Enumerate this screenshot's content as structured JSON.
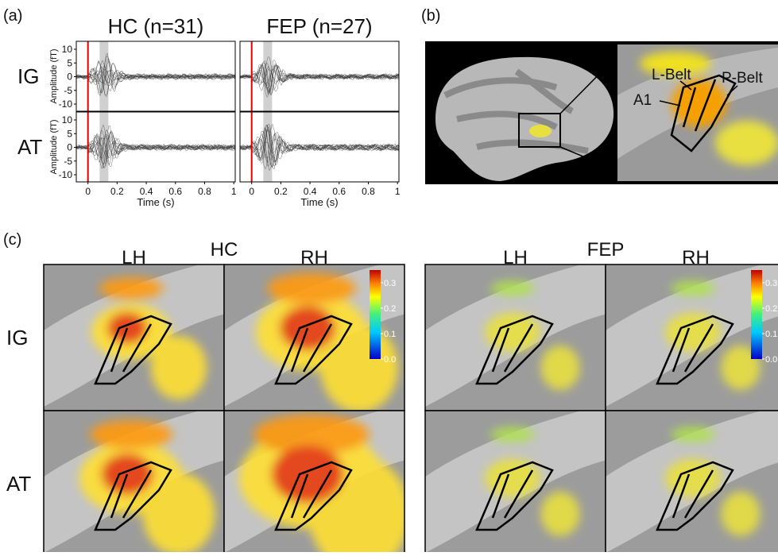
{
  "panel_a": {
    "label": "(a)",
    "columns": [
      "HC (n=31)",
      "FEP (n=27)"
    ],
    "rows": [
      "IG",
      "AT"
    ],
    "y_label": "Amplitude (fT)",
    "x_label": "Time (s)",
    "xlim": [
      -0.08,
      1.01
    ],
    "xticks": [
      0,
      0.2,
      0.4,
      0.6,
      0.8,
      1
    ],
    "ylim": [
      -12.6,
      12.9
    ],
    "yticks": [
      10,
      5,
      0,
      -5,
      -10
    ],
    "stimulus_time": 0,
    "window": [
      0.08,
      0.14
    ]
  },
  "panel_b": {
    "label": "(b)",
    "regions": [
      "L-Belt",
      "P-Belt",
      "A1"
    ]
  },
  "panel_c": {
    "label": "(c)",
    "groups": [
      {
        "name": "HC",
        "hemispheres": [
          "LH",
          "RH"
        ]
      },
      {
        "name": "FEP",
        "hemispheres": [
          "LH",
          "RH"
        ]
      }
    ],
    "rows": [
      "IG",
      "AT"
    ],
    "colorbar": {
      "lim": [
        0,
        0.35
      ],
      "ticks": [
        0.3,
        0.2,
        0.1,
        {
          "value": 0,
          "label": "0.0"
        }
      ]
    }
  }
}
